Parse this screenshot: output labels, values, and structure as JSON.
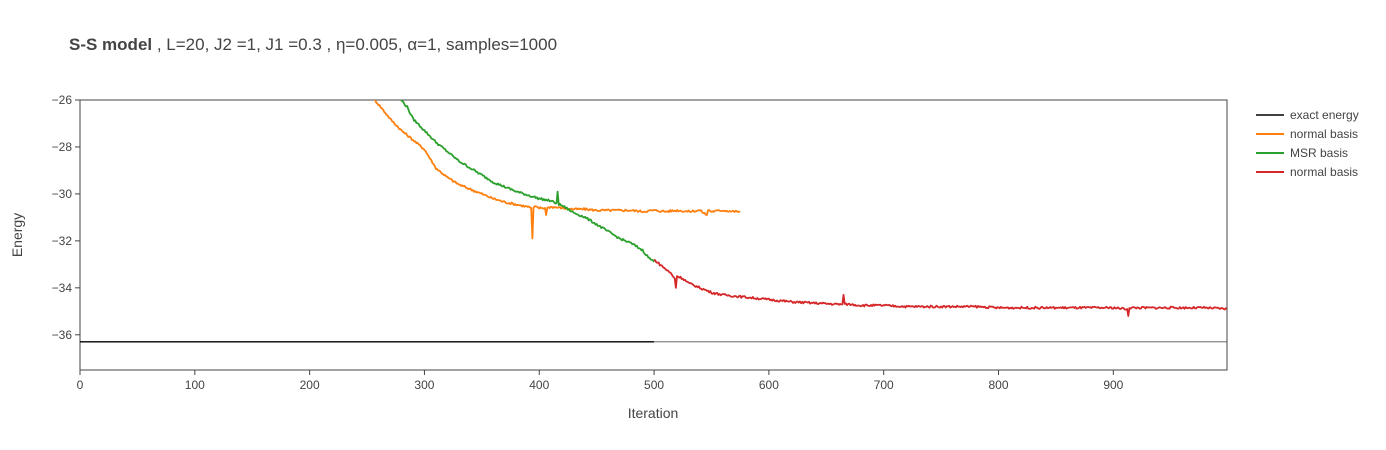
{
  "chart_data": {
    "type": "line",
    "title_bold": "S-S model",
    "title_rest": " , L=20, J2 =1, J1 =0.3 , η=0.005, α=1, samples=1000",
    "xlabel": "Iteration",
    "ylabel": "Energy",
    "xlim": [
      0,
      999
    ],
    "ylim": [
      -37.5,
      -26
    ],
    "x_ticks": [
      0,
      100,
      200,
      300,
      400,
      500,
      600,
      700,
      800,
      900
    ],
    "y_ticks": [
      -36,
      -34,
      -32,
      -30,
      -28,
      -26
    ],
    "x_tick_labels": [
      "0",
      "100",
      "200",
      "300",
      "400",
      "500",
      "600",
      "700",
      "800",
      "900"
    ],
    "y_tick_labels": [
      "−36",
      "−34",
      "−32",
      "−30",
      "−28",
      "−26"
    ],
    "grid": false,
    "legend_position": "top-right",
    "series": [
      {
        "name": "exact energy",
        "color": "#000000",
        "x": [
          0,
          999
        ],
        "y": [
          -36.3,
          -36.3
        ],
        "break_x": 500
      },
      {
        "name": "normal basis",
        "color": "#ff7f0e",
        "x": [
          255,
          262,
          270,
          280,
          290,
          300,
          310,
          320,
          330,
          340,
          350,
          360,
          370,
          380,
          390,
          393,
          394,
          395,
          396,
          400,
          405,
          406,
          407,
          410,
          420,
          430,
          440,
          450,
          460,
          470,
          480,
          490,
          500,
          510,
          520,
          530,
          540,
          546,
          547,
          548,
          550,
          560,
          570,
          575
        ],
        "y": [
          -25.9,
          -26.3,
          -26.8,
          -27.3,
          -27.7,
          -28.1,
          -28.9,
          -29.3,
          -29.6,
          -29.8,
          -30.0,
          -30.2,
          -30.35,
          -30.45,
          -30.55,
          -30.6,
          -31.9,
          -30.6,
          -30.55,
          -30.6,
          -30.6,
          -30.9,
          -30.6,
          -30.55,
          -30.6,
          -30.65,
          -30.65,
          -30.7,
          -30.7,
          -30.7,
          -30.7,
          -30.75,
          -30.7,
          -30.75,
          -30.7,
          -30.75,
          -30.7,
          -30.9,
          -30.7,
          -30.7,
          -30.75,
          -30.7,
          -30.75,
          -30.75
        ]
      },
      {
        "name": "MSR basis",
        "color": "#2ca02c",
        "x": [
          278,
          285,
          290,
          300,
          310,
          320,
          330,
          340,
          350,
          360,
          370,
          380,
          390,
          400,
          410,
          415,
          416,
          417,
          420,
          430,
          440,
          450,
          460,
          470,
          480,
          490,
          495,
          500
        ],
        "y": [
          -25.9,
          -26.3,
          -26.8,
          -27.3,
          -27.8,
          -28.2,
          -28.6,
          -28.9,
          -29.2,
          -29.5,
          -29.7,
          -29.9,
          -30.05,
          -30.2,
          -30.3,
          -30.4,
          -29.9,
          -30.45,
          -30.5,
          -30.8,
          -31.0,
          -31.3,
          -31.6,
          -31.9,
          -32.1,
          -32.4,
          -32.7,
          -32.9
        ]
      },
      {
        "name": "normal basis",
        "color": "#d62728",
        "x": [
          500,
          505,
          510,
          515,
          518,
          519,
          520,
          525,
          530,
          540,
          550,
          560,
          570,
          580,
          600,
          620,
          640,
          660,
          664,
          665,
          666,
          670,
          680,
          700,
          720,
          740,
          760,
          780,
          800,
          820,
          840,
          860,
          880,
          900,
          912,
          913,
          914,
          920,
          940,
          960,
          980,
          999
        ],
        "y": [
          -32.8,
          -33.0,
          -33.2,
          -33.4,
          -33.6,
          -34.0,
          -33.5,
          -33.6,
          -33.8,
          -34.0,
          -34.2,
          -34.3,
          -34.35,
          -34.4,
          -34.5,
          -34.6,
          -34.65,
          -34.7,
          -34.7,
          -34.3,
          -34.7,
          -34.7,
          -34.75,
          -34.75,
          -34.8,
          -34.8,
          -34.8,
          -34.8,
          -34.85,
          -34.85,
          -34.85,
          -34.85,
          -34.85,
          -34.85,
          -34.9,
          -35.2,
          -34.85,
          -34.85,
          -34.85,
          -34.85,
          -34.85,
          -34.9
        ]
      }
    ]
  }
}
